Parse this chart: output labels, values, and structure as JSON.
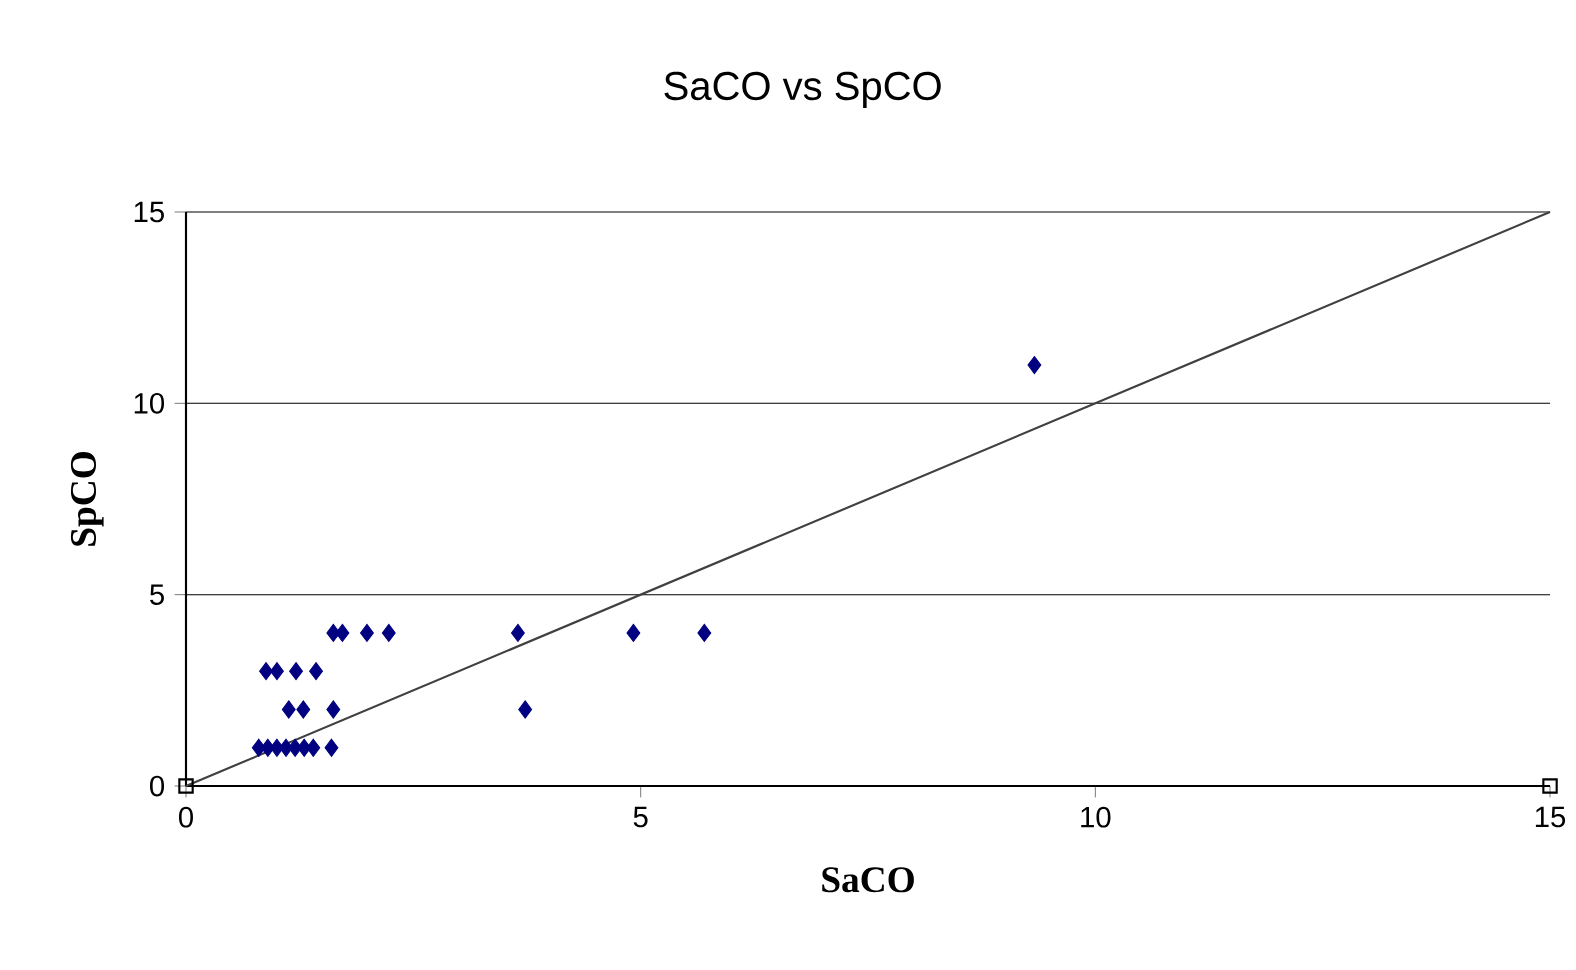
{
  "chart_data": {
    "type": "scatter",
    "title": "SaCO vs SpCO",
    "xlabel": "SaCO",
    "ylabel": "SpCO",
    "xlim": [
      0,
      15
    ],
    "ylim": [
      0,
      15
    ],
    "xticks": [
      0,
      5,
      10,
      15
    ],
    "yticks": [
      0,
      5,
      10,
      15
    ],
    "grid": "y",
    "marker": "diamond",
    "series": [
      {
        "color": "#000080",
        "x": [
          0.8,
          0.9,
          1.0,
          1.1,
          1.2,
          1.3,
          1.4,
          1.6,
          1.13,
          1.29,
          1.62,
          3.73,
          0.88,
          1.0,
          1.21,
          1.43,
          1.62,
          1.72,
          1.99,
          2.23,
          3.65,
          4.92,
          5.7,
          9.33
        ],
        "values": [
          1,
          1,
          1,
          1,
          1,
          1,
          1,
          1,
          2,
          2,
          2,
          2,
          3,
          3,
          3,
          3,
          4,
          4,
          4,
          4,
          4,
          4,
          4,
          11
        ]
      },
      {
        "type": "line",
        "color": "#404040",
        "marker": "none",
        "x": [
          0,
          15
        ],
        "values": [
          0,
          15
        ]
      },
      {
        "type": "scatter",
        "color": "#000000",
        "marker": "square",
        "x": [
          0,
          15
        ],
        "values": [
          0,
          0
        ]
      }
    ]
  }
}
